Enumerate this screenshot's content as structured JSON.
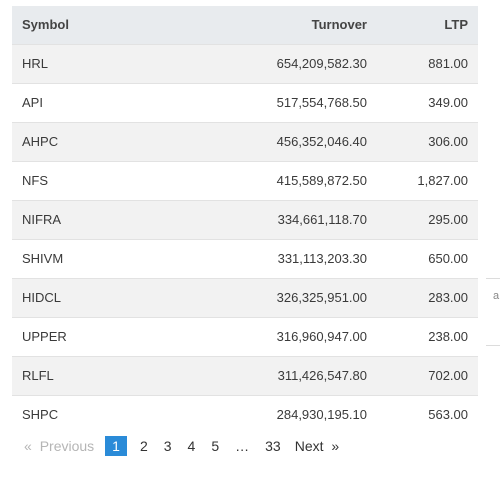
{
  "table": {
    "headers": {
      "symbol": "Symbol",
      "turnover": "Turnover",
      "ltp": "LTP"
    },
    "rows": [
      {
        "symbol": "HRL",
        "turnover": "654,209,582.30",
        "ltp": "881.00"
      },
      {
        "symbol": "API",
        "turnover": "517,554,768.50",
        "ltp": "349.00"
      },
      {
        "symbol": "AHPC",
        "turnover": "456,352,046.40",
        "ltp": "306.00"
      },
      {
        "symbol": "NFS",
        "turnover": "415,589,872.50",
        "ltp": "1,827.00"
      },
      {
        "symbol": "NIFRA",
        "turnover": "334,661,118.70",
        "ltp": "295.00"
      },
      {
        "symbol": "SHIVM",
        "turnover": "331,113,203.30",
        "ltp": "650.00"
      },
      {
        "symbol": "HIDCL",
        "turnover": "326,325,951.00",
        "ltp": "283.00"
      },
      {
        "symbol": "UPPER",
        "turnover": "316,960,947.00",
        "ltp": "238.00"
      },
      {
        "symbol": "RLFL",
        "turnover": "311,426,547.80",
        "ltp": "702.00"
      },
      {
        "symbol": "SHPC",
        "turnover": "284,930,195.10",
        "ltp": "563.00"
      }
    ]
  },
  "pagination": {
    "prev_glyph": "«",
    "prev_label": "Previous",
    "pages": [
      "1",
      "2",
      "3",
      "4",
      "5"
    ],
    "ellipsis": "…",
    "last_page": "33",
    "next_label": "Next",
    "next_glyph": "»",
    "active_page": "1"
  },
  "edge_fragment": "a"
}
